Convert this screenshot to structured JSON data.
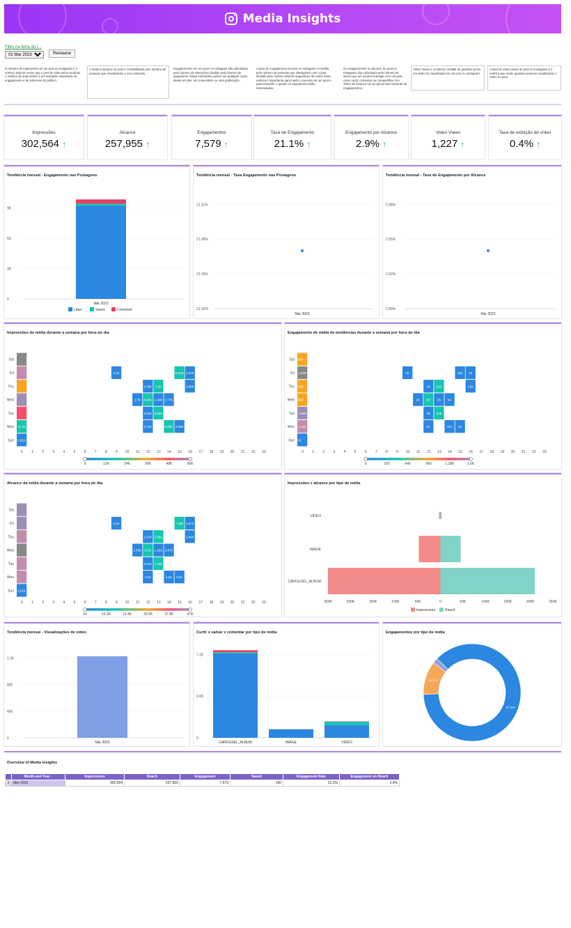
{
  "header": {
    "title": "Media Insights"
  },
  "filter": {
    "label": "Filtro na linha do t...",
    "value": "01 Mar 2023 - 31 Mar 2023",
    "reset_label": "Restaurar"
  },
  "descriptions": [
    "O número de impressões de um post no Instagram é o número total de vezes que o post foi visto pelos usuários. A métrica de impressões é um indicador importante de engajamento e de interesse do público.",
    "A métrica alcance do post é contabilizada pelo número de pessoas que visualizaram o seu conteúdo.",
    "Engajamentos em um post no Instagram são calculados pelo número de interações dividido pelo número de seguidores. Estas interações podem ser qualquer coisa, desde um like, um comentário ou uma publicação.",
    "A taxa de engajamento do post no Instagram é medida pelo número de pessoas que interagiram com o post, dividido pelo número total de seguidores da conta. Essa métrica é importante para medir o sucesso de um post e para entender o quanto os seguidores estão interessados.",
    "Os engajamentos no alcance do post no Instagram são calculados pelo número de vezes que um usuário interage com um post, como curtir, comentar ou compartilhar. Em 100% de Alcance há um percentual somente de engajamentos.",
    "Vídeo Views é a métrica contábil de quantas vezes um vídeo foi visualizado em um post no Instagram.",
    "A taxa de vídeo views do post no Instagram é a métrica que mede quantas pessoas visualizaram o vídeo no post."
  ],
  "kpis": [
    {
      "label": "Impressões",
      "value": "302,564",
      "arrow": "↑"
    },
    {
      "label": "Alcance",
      "value": "257,955",
      "arrow": "↑"
    },
    {
      "label": "Engajamentos",
      "value": "7,579",
      "arrow": "↑"
    },
    {
      "label": "Taxa de Engajamento",
      "value": "21.1%",
      "arrow": "↑"
    },
    {
      "label": "Engajamento por Alcance",
      "value": "2.9%",
      "arrow": "↑"
    },
    {
      "label": "Video Views",
      "value": "1,227",
      "arrow": "↑"
    },
    {
      "label": "Taxa de exibição de vídeo",
      "value": "0.4%",
      "arrow": "↑"
    }
  ],
  "colors": {
    "accent": "#a985e6",
    "blue": "#2b87e0",
    "teal": "#16c5b0",
    "red": "#e6405e",
    "up": "#19a55b"
  },
  "chart_data": [
    {
      "id": "eng_monthly",
      "type": "bar",
      "title": "Tendência mensal - Engajamento nas Postagens",
      "categories": [
        "Mar 2023"
      ],
      "series": [
        {
          "name": "Likes",
          "values": [
            9250
          ]
        },
        {
          "name": "Saves",
          "values": [
            190
          ]
        },
        {
          "name": "Comment",
          "values": [
            420
          ]
        }
      ],
      "ylim": [
        0,
        10500
      ],
      "yticks": [
        0,
        3000,
        6000,
        9000
      ],
      "ytick_labels": [
        "0",
        "3K",
        "6K",
        "9K"
      ],
      "legend": "bottom"
    },
    {
      "id": "rate_monthly",
      "type": "scatter",
      "title": "Tendência mensal - Taxa Engajamento nas Postagens",
      "x": [
        "Mar 2023"
      ],
      "y": [
        21.07
      ],
      "ylim": [
        21.02,
        21.115
      ],
      "yticks": [
        21.02,
        21.05,
        21.08,
        21.11
      ],
      "ytick_labels": [
        "21.02%",
        "21.05%",
        "21.08%",
        "21.11%"
      ]
    },
    {
      "id": "reach_rate_monthly",
      "type": "scatter",
      "title": "Tendência mensal - Taxa de Engajamento por Alcance",
      "x": [
        "Mar 2023"
      ],
      "y": [
        2.94
      ],
      "ylim": [
        2.89,
        2.985
      ],
      "yticks": [
        2.89,
        2.92,
        2.95,
        2.98
      ],
      "ytick_labels": [
        "2.89%",
        "2.92%",
        "2.95%",
        "2.98%"
      ]
    },
    {
      "id": "hm_impr",
      "type": "heatmap",
      "title": "Impressões de mídia durante a semana por hora do dia",
      "rows": [
        "Sat",
        "Fri",
        "Thu",
        "Wed",
        "Tue",
        "Mon",
        "Sun"
      ],
      "row_totals": [
        60000,
        35000,
        24000,
        50000,
        30000,
        14400,
        2810
      ],
      "row_total_labels": [
        "",
        "",
        "",
        "",
        "",
        "14.4K",
        "2.81K"
      ],
      "hours": [
        0,
        1,
        2,
        3,
        4,
        5,
        6,
        7,
        8,
        9,
        10,
        11,
        12,
        13,
        14,
        15,
        16,
        17,
        18,
        19,
        20,
        21,
        22,
        23
      ],
      "cells": [
        {
          "row": 1,
          "hour": 9,
          "value": "1.2K"
        },
        {
          "row": 1,
          "hour": 15,
          "value": "8.91K"
        },
        {
          "row": 1,
          "hour": 16,
          "value": "2.02K"
        },
        {
          "row": 2,
          "hour": 12,
          "value": "2.05K"
        },
        {
          "row": 2,
          "hour": 13,
          "value": "7.2K"
        },
        {
          "row": 2,
          "hour": 16,
          "value": "3.06K"
        },
        {
          "row": 3,
          "hour": 11,
          "value": "1.7K"
        },
        {
          "row": 3,
          "hour": 12,
          "value": "6.94K"
        },
        {
          "row": 3,
          "hour": 13,
          "value": "1.34K"
        },
        {
          "row": 3,
          "hour": 14,
          "value": "2.77K"
        },
        {
          "row": 4,
          "hour": 12,
          "value": "3.93K"
        },
        {
          "row": 4,
          "hour": 13,
          "value": "8.83K"
        },
        {
          "row": 5,
          "hour": 12,
          "value": "3.73K"
        },
        {
          "row": 5,
          "hour": 14,
          "value": "5.55K"
        },
        {
          "row": 5,
          "hour": 15,
          "value": "3.38K"
        }
      ],
      "scale_ticks": [
        "0",
        "12K",
        "24K",
        "36K",
        "48K",
        "60K"
      ],
      "scale_max": 60000
    },
    {
      "id": "hm_eng",
      "type": "heatmap",
      "title": "Engajamento de mídia de tendências durante a semana por hora do dia",
      "rows": [
        "Sat",
        "Fri",
        "Thu",
        "Wed",
        "Tue",
        "Mon",
        "Sun"
      ],
      "row_totals": [
        500,
        1530,
        663,
        550,
        1390,
        1110,
        42
      ],
      "row_total_labels": [
        "500",
        "1.53K",
        "663",
        "550",
        "1.39K",
        "1.11K",
        "42"
      ],
      "hours": [
        0,
        1,
        2,
        3,
        4,
        5,
        6,
        7,
        8,
        9,
        10,
        11,
        12,
        13,
        14,
        15,
        16,
        17,
        18,
        19,
        20,
        21,
        22,
        23
      ],
      "cells": [
        {
          "row": 1,
          "hour": 10,
          "value": "10"
        },
        {
          "row": 1,
          "hour": 15,
          "value": "192"
        },
        {
          "row": 1,
          "hour": 16,
          "value": "43"
        },
        {
          "row": 2,
          "hour": 12,
          "value": "34"
        },
        {
          "row": 2,
          "hour": 13,
          "value": "219"
        },
        {
          "row": 2,
          "hour": 16,
          "value": "128"
        },
        {
          "row": 3,
          "hour": 11,
          "value": "20"
        },
        {
          "row": 3,
          "hour": 12,
          "value": "257"
        },
        {
          "row": 3,
          "hour": 13,
          "value": "25"
        },
        {
          "row": 3,
          "hour": 14,
          "value": "64"
        },
        {
          "row": 4,
          "hour": 12,
          "value": "88"
        },
        {
          "row": 4,
          "hour": 13,
          "value": "235"
        },
        {
          "row": 5,
          "hour": 12,
          "value": "81"
        },
        {
          "row": 5,
          "hour": 14,
          "value": "157"
        },
        {
          "row": 5,
          "hour": 15,
          "value": "61"
        }
      ],
      "scale_ticks": [
        "0",
        "320",
        "640",
        "960",
        "1.28K",
        "1.6K"
      ],
      "scale_max": 1600
    },
    {
      "id": "hm_reach",
      "type": "heatmap",
      "title": "Alcance da mídia durante a semana por hora do dia",
      "rows": [
        "Sat",
        "Fri",
        "Thu",
        "Wed",
        "Tue",
        "Mon",
        "Sun"
      ],
      "row_totals": [
        42000,
        36000,
        30000,
        44000,
        34000,
        28000,
        2610
      ],
      "row_total_labels": [
        "",
        "",
        "",
        "",
        "",
        "",
        "2.61K"
      ],
      "hours": [
        0,
        1,
        2,
        3,
        4,
        5,
        6,
        7,
        8,
        9,
        10,
        11,
        12,
        13,
        14,
        15,
        16,
        17,
        18,
        19,
        20,
        21,
        22,
        23
      ],
      "cells": [
        {
          "row": 1,
          "hour": 9,
          "value": "1.5K"
        },
        {
          "row": 1,
          "hour": 15,
          "value": "7.49K"
        },
        {
          "row": 1,
          "hour": 16,
          "value": "1.87K"
        },
        {
          "row": 2,
          "hour": 12,
          "value": "1.87K"
        },
        {
          "row": 2,
          "hour": 13,
          "value": "5.86K"
        },
        {
          "row": 2,
          "hour": 16,
          "value": "2.94K"
        },
        {
          "row": 3,
          "hour": 11,
          "value": "1.53K"
        },
        {
          "row": 3,
          "hour": 12,
          "value": "5.7K"
        },
        {
          "row": 3,
          "hour": 13,
          "value": "1.26K"
        },
        {
          "row": 3,
          "hour": 14,
          "value": "2.57K"
        },
        {
          "row": 4,
          "hour": 12,
          "value": "3.17K"
        },
        {
          "row": 4,
          "hour": 13,
          "value": "7.18K"
        },
        {
          "row": 5,
          "hour": 12,
          "value": "3.1K"
        },
        {
          "row": 5,
          "hour": 14,
          "value": "4.6K"
        },
        {
          "row": 5,
          "hour": 15,
          "value": "3.2K"
        }
      ],
      "scale_ticks": [
        "1K",
        "10.2K",
        "19.4K",
        "28.6K",
        "37.8K",
        "47K"
      ],
      "scale_max": 47000
    },
    {
      "id": "impr_reach_type",
      "type": "bar",
      "orientation": "horizontal",
      "title": "Impressões x alcance por tipo de mídia",
      "categories": [
        "VIDEO",
        "IMAGE",
        "CAROUSEL_ALBUM"
      ],
      "series": [
        {
          "name": "Impressions",
          "values": [
            3000,
            48000,
            250000
          ]
        },
        {
          "name": "Reach",
          "values": [
            2500,
            45000,
            210000
          ]
        }
      ],
      "xlim": [
        -250000,
        250000
      ],
      "xticks": [
        -250000,
        -200000,
        -150000,
        -100000,
        -50000,
        0,
        50000,
        100000,
        150000,
        200000,
        250000
      ],
      "xtick_labels": [
        "250K",
        "200K",
        "150K",
        "100K",
        "50K",
        "0",
        "50K",
        "100K",
        "150K",
        "200K",
        "250K"
      ],
      "legend": "bottom"
    },
    {
      "id": "video_monthly",
      "type": "bar",
      "title": "Tendência mensal - Visualizações de vídeo",
      "categories": [
        "Mar 2023"
      ],
      "values": [
        1227
      ],
      "ylim": [
        0,
        1300
      ],
      "yticks": [
        0,
        400,
        800,
        1200
      ],
      "ytick_labels": [
        "0",
        "400",
        "800",
        "1.2K"
      ]
    },
    {
      "id": "like_save_comment_type",
      "type": "bar",
      "title": "Curtir x salvar x comentar por tipo de mídia",
      "categories": [
        "CAROUSEL_ALBUM",
        "IMAGE",
        "VIDEO"
      ],
      "series": [
        {
          "name": "Likes",
          "values": [
            7300,
            720,
            1100
          ]
        },
        {
          "name": "Saves",
          "values": [
            80,
            20,
            290
          ]
        },
        {
          "name": "Comment",
          "values": [
            180,
            10,
            30
          ]
        }
      ],
      "ylim": [
        0,
        7700
      ],
      "yticks": [
        0,
        3600,
        7200
      ],
      "ytick_labels": [
        "0",
        "3.6K",
        "7.2K"
      ]
    },
    {
      "id": "eng_by_type",
      "type": "pie",
      "title": "Engajamentos por tipo de mídia",
      "slices": [
        {
          "value": 87.2,
          "label": "87.2%",
          "color": "#2b87e0"
        },
        {
          "value": 11.1,
          "label": "11.1%",
          "color": "#f6a85a"
        },
        {
          "value": 1.7,
          "label": "",
          "color": "#8ea3dd"
        }
      ]
    }
  ],
  "table": {
    "title": "Overview of Media Insights",
    "columns": [
      "Month and Year ↓",
      "Impressions",
      "Reach",
      "Engagement",
      "Saved",
      "Engagement Rate",
      "Engagement on Reach"
    ],
    "rows": [
      {
        "n": "1",
        "cells": [
          "Mar 2023",
          "302,564",
          "257,955",
          "7,579",
          "190",
          "21.1%",
          "2.9%"
        ]
      }
    ]
  }
}
